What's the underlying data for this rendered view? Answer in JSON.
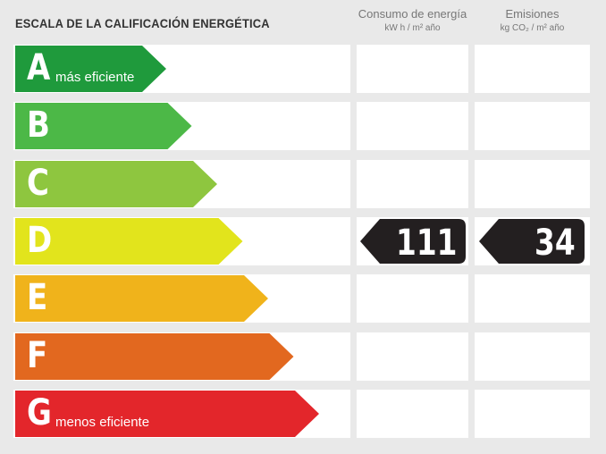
{
  "title": "ESCALA DE LA CALIFICACIÓN ENERGÉTICA",
  "columns": [
    {
      "label": "Consumo de energía",
      "unit": "kW h / m² año"
    },
    {
      "label": "Emisiones",
      "unit": "kg CO₂ / m² año"
    }
  ],
  "ratings": [
    {
      "letter": "A",
      "note": "más eficiente",
      "color": "#1f9a3c"
    },
    {
      "letter": "B",
      "note": "",
      "color": "#4cb847"
    },
    {
      "letter": "C",
      "note": "",
      "color": "#8ec63f"
    },
    {
      "letter": "D",
      "note": "",
      "color": "#e2e41c"
    },
    {
      "letter": "E",
      "note": "",
      "color": "#f0b31b"
    },
    {
      "letter": "F",
      "note": "",
      "color": "#e2681f"
    },
    {
      "letter": "G",
      "note": "menos eficiente",
      "color": "#e3262b"
    }
  ],
  "current": {
    "rating": "D",
    "energy_consumption": "111",
    "emissions": "34",
    "badge_color": "#231f20"
  }
}
